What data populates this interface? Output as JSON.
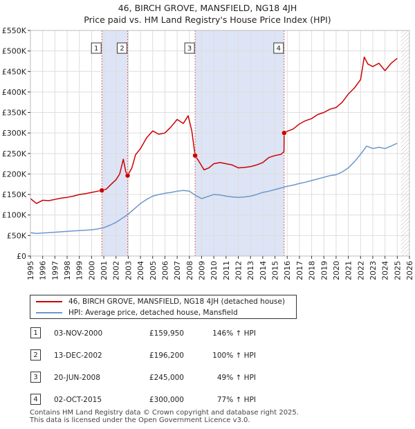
{
  "title_line1": "46, BIRCH GROVE, MANSFIELD, NG18 4JH",
  "title_line2": "Price paid vs. HM Land Registry's House Price Index (HPI)",
  "chart_data": {
    "type": "line",
    "ylim": [
      0,
      550000
    ],
    "xlim": [
      1995,
      2026
    ],
    "y_ticks": [
      {
        "value": 0,
        "label": "£0"
      },
      {
        "value": 50000,
        "label": "£50K"
      },
      {
        "value": 100000,
        "label": "£100K"
      },
      {
        "value": 150000,
        "label": "£150K"
      },
      {
        "value": 200000,
        "label": "£200K"
      },
      {
        "value": 250000,
        "label": "£250K"
      },
      {
        "value": 300000,
        "label": "£300K"
      },
      {
        "value": 350000,
        "label": "£350K"
      },
      {
        "value": 400000,
        "label": "£400K"
      },
      {
        "value": 450000,
        "label": "£450K"
      },
      {
        "value": 500000,
        "label": "£500K"
      },
      {
        "value": 550000,
        "label": "£550K"
      }
    ],
    "x_ticks": [
      1995,
      1996,
      1997,
      1998,
      1999,
      2000,
      2001,
      2002,
      2003,
      2004,
      2005,
      2006,
      2007,
      2008,
      2009,
      2010,
      2011,
      2012,
      2013,
      2014,
      2015,
      2016,
      2017,
      2018,
      2019,
      2020,
      2021,
      2022,
      2023,
      2024,
      2025,
      2026
    ],
    "shaded_periods": [
      [
        2000.84,
        2002.95
      ],
      [
        2008.47,
        2015.75
      ]
    ],
    "forecast_start": 2025.3,
    "series": [
      {
        "name": "46, BIRCH GROVE, MANSFIELD, NG18 4JH (detached house)",
        "color": "#cc0000",
        "x": [
          1995.0,
          1995.5,
          1996.0,
          1996.5,
          1997.0,
          1997.5,
          1998.0,
          1998.5,
          1999.0,
          1999.5,
          2000.0,
          2000.5,
          2000.84,
          2001.2,
          2001.6,
          2002.0,
          2002.3,
          2002.6,
          2002.8,
          2002.95,
          2003.3,
          2003.6,
          2004.0,
          2004.5,
          2005.0,
          2005.5,
          2006.0,
          2006.5,
          2007.0,
          2007.5,
          2007.9,
          2008.2,
          2008.47,
          2008.8,
          2009.2,
          2009.6,
          2010.0,
          2010.5,
          2011.0,
          2011.5,
          2012.0,
          2012.5,
          2013.0,
          2013.5,
          2014.0,
          2014.5,
          2015.0,
          2015.5,
          2015.74,
          2015.75,
          2016.0,
          2016.5,
          2017.0,
          2017.5,
          2018.0,
          2018.5,
          2019.0,
          2019.5,
          2020.0,
          2020.5,
          2021.0,
          2021.5,
          2022.0,
          2022.3,
          2022.6,
          2023.0,
          2023.5,
          2024.0,
          2024.5,
          2025.0
        ],
        "y": [
          140000,
          128000,
          136000,
          135000,
          138000,
          141000,
          143000,
          146000,
          150000,
          152000,
          155000,
          158000,
          159950,
          163000,
          175000,
          186000,
          200000,
          236000,
          205000,
          196200,
          215000,
          247000,
          262000,
          288000,
          305000,
          297000,
          300000,
          315000,
          333000,
          323000,
          342000,
          305000,
          245000,
          230000,
          210000,
          215000,
          225000,
          228000,
          225000,
          222000,
          215000,
          216000,
          218000,
          222000,
          228000,
          240000,
          245000,
          248000,
          255000,
          300000,
          304000,
          310000,
          322000,
          330000,
          335000,
          345000,
          350000,
          358000,
          362000,
          375000,
          395000,
          410000,
          430000,
          485000,
          468000,
          462000,
          470000,
          452000,
          470000,
          482000
        ]
      },
      {
        "name": "HPI: Average price, detached house, Mansfield",
        "color": "#6b97c9",
        "x": [
          1995.0,
          1995.5,
          1996.0,
          1996.5,
          1997.0,
          1997.5,
          1998.0,
          1998.5,
          1999.0,
          1999.5,
          2000.0,
          2000.5,
          2001.0,
          2001.5,
          2002.0,
          2002.5,
          2003.0,
          2003.5,
          2004.0,
          2004.5,
          2005.0,
          2005.5,
          2006.0,
          2006.5,
          2007.0,
          2007.5,
          2008.0,
          2008.5,
          2009.0,
          2009.5,
          2010.0,
          2010.5,
          2011.0,
          2011.5,
          2012.0,
          2012.5,
          2013.0,
          2013.5,
          2014.0,
          2014.5,
          2015.0,
          2015.5,
          2016.0,
          2016.5,
          2017.0,
          2017.5,
          2018.0,
          2018.5,
          2019.0,
          2019.5,
          2020.0,
          2020.5,
          2021.0,
          2021.5,
          2022.0,
          2022.5,
          2023.0,
          2023.5,
          2024.0,
          2024.5,
          2025.0
        ],
        "y": [
          57000,
          55000,
          56000,
          57000,
          58000,
          59000,
          60000,
          61000,
          62000,
          63000,
          64000,
          66000,
          69000,
          75000,
          82000,
          92000,
          102000,
          115000,
          128000,
          138000,
          146000,
          150000,
          153000,
          155000,
          158000,
          160000,
          158000,
          148000,
          140000,
          145000,
          150000,
          149000,
          146000,
          144000,
          143000,
          144000,
          146000,
          150000,
          155000,
          158000,
          162000,
          166000,
          170000,
          173000,
          177000,
          180000,
          184000,
          188000,
          192000,
          196000,
          198000,
          205000,
          215000,
          230000,
          248000,
          268000,
          262000,
          265000,
          262000,
          268000,
          275000
        ]
      }
    ],
    "sale_markers": [
      {
        "label": "1",
        "x": 2000.84,
        "y": 159950
      },
      {
        "label": "2",
        "x": 2002.95,
        "y": 196200
      },
      {
        "label": "3",
        "x": 2008.47,
        "y": 245000
      },
      {
        "label": "4",
        "x": 2015.75,
        "y": 300000
      }
    ]
  },
  "legend": {
    "entries": [
      {
        "label": "46, BIRCH GROVE, MANSFIELD, NG18 4JH (detached house)",
        "color": "#cc0000"
      },
      {
        "label": "HPI: Average price, detached house, Mansfield",
        "color": "#6b97c9"
      }
    ]
  },
  "sales": [
    {
      "num": "1",
      "date": "03-NOV-2000",
      "price": "£159,950",
      "hpi": "146% ↑ HPI"
    },
    {
      "num": "2",
      "date": "13-DEC-2002",
      "price": "£196,200",
      "hpi": "100% ↑ HPI"
    },
    {
      "num": "3",
      "date": "20-JUN-2008",
      "price": "£245,000",
      "hpi": "49% ↑ HPI"
    },
    {
      "num": "4",
      "date": "02-OCT-2015",
      "price": "£300,000",
      "hpi": "77% ↑ HPI"
    }
  ],
  "footer_line1": "Contains HM Land Registry data © Crown copyright and database right 2025.",
  "footer_line2": "This data is licensed under the Open Government Licence v3.0."
}
